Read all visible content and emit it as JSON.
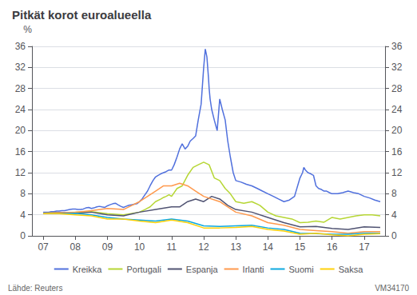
{
  "chart_data": {
    "type": "line",
    "title": "Pitkät korot euroalueella",
    "ylabel": "%",
    "annotations": [
      "Lähde: Reuters",
      "VM34170"
    ],
    "xlim": [
      2006.65,
      2017.65
    ],
    "xticks": [
      {
        "value": 2007,
        "label": "07"
      },
      {
        "value": 2008,
        "label": "08"
      },
      {
        "value": 2009,
        "label": "09"
      },
      {
        "value": 2010,
        "label": "10"
      },
      {
        "value": 2011,
        "label": "11"
      },
      {
        "value": 2012,
        "label": "12"
      },
      {
        "value": 2013,
        "label": "13"
      },
      {
        "value": 2014,
        "label": "14"
      },
      {
        "value": 2015,
        "label": "15"
      },
      {
        "value": 2016,
        "label": "16"
      },
      {
        "value": 2017,
        "label": "17"
      }
    ],
    "ylim": [
      0,
      36
    ],
    "yticks": [
      0,
      4,
      8,
      12,
      16,
      20,
      24,
      28,
      32,
      36
    ],
    "y2lim": [
      0,
      36
    ],
    "y2ticks": [
      0,
      4,
      8,
      12,
      16,
      20,
      24,
      28,
      32,
      36
    ],
    "grid": true,
    "legend": "bottom",
    "series": [
      {
        "name": "Kreikka",
        "x": [
          2007.0,
          2007.08,
          2007.17,
          2007.25,
          2007.33,
          2007.42,
          2007.5,
          2007.58,
          2007.67,
          2007.75,
          2007.83,
          2007.92,
          2008.0,
          2008.08,
          2008.17,
          2008.25,
          2008.33,
          2008.42,
          2008.5,
          2008.58,
          2008.67,
          2008.75,
          2008.83,
          2008.92,
          2009.0,
          2009.08,
          2009.17,
          2009.25,
          2009.33,
          2009.42,
          2009.5,
          2009.58,
          2009.67,
          2009.75,
          2009.83,
          2009.92,
          2010.0,
          2010.08,
          2010.17,
          2010.25,
          2010.33,
          2010.42,
          2010.5,
          2010.58,
          2010.67,
          2010.75,
          2010.83,
          2010.92,
          2011.0,
          2011.08,
          2011.17,
          2011.25,
          2011.33,
          2011.42,
          2011.5,
          2011.58,
          2011.67,
          2011.75,
          2011.83,
          2011.92,
          2012.0,
          2012.05,
          2012.1,
          2012.15,
          2012.17,
          2012.2,
          2012.25,
          2012.33,
          2012.42,
          2012.5,
          2012.58,
          2012.67,
          2012.75,
          2012.83,
          2012.92,
          2013.0,
          2013.17,
          2013.33,
          2013.5,
          2013.67,
          2013.83,
          2014.0,
          2014.17,
          2014.33,
          2014.5,
          2014.67,
          2014.83,
          2015.0,
          2015.08,
          2015.12,
          2015.17,
          2015.25,
          2015.33,
          2015.42,
          2015.5,
          2015.58,
          2015.67,
          2015.75,
          2015.83,
          2015.92,
          2016.0,
          2016.17,
          2016.33,
          2016.5,
          2016.67,
          2016.83,
          2017.0,
          2017.17,
          2017.33,
          2017.5
        ],
        "values": [
          4.5,
          4.5,
          4.5,
          4.6,
          4.6,
          4.7,
          4.7,
          4.8,
          4.8,
          4.9,
          5.0,
          5.1,
          5.1,
          5.0,
          5.0,
          5.1,
          5.3,
          5.4,
          5.2,
          5.3,
          5.5,
          5.6,
          5.5,
          5.4,
          5.7,
          5.9,
          6.1,
          6.2,
          5.9,
          5.6,
          5.4,
          5.6,
          5.8,
          5.9,
          6.0,
          6.1,
          6.5,
          7.0,
          7.8,
          8.5,
          9.5,
          10.5,
          11.2,
          11.5,
          11.8,
          12.0,
          12.2,
          12.5,
          12.5,
          13.5,
          15.0,
          16.5,
          17.5,
          16.5,
          17.0,
          18.0,
          18.5,
          19.0,
          22.0,
          25.0,
          32.0,
          35.5,
          34.0,
          30.0,
          28.0,
          26.0,
          24.0,
          22.0,
          20.0,
          26.0,
          24.0,
          22.0,
          18.0,
          15.0,
          12.0,
          10.5,
          10.2,
          9.8,
          9.5,
          9.0,
          8.5,
          8.0,
          7.5,
          7.0,
          6.5,
          6.8,
          7.5,
          11.0,
          12.0,
          13.0,
          12.5,
          12.0,
          11.8,
          11.5,
          9.5,
          9.0,
          8.8,
          8.5,
          8.5,
          8.2,
          8.0,
          8.0,
          8.2,
          8.5,
          8.2,
          8.0,
          7.5,
          7.2,
          6.8,
          6.5
        ]
      },
      {
        "name": "Portugali",
        "x": [
          2007.0,
          2007.5,
          2008.0,
          2008.5,
          2009.0,
          2009.5,
          2010.0,
          2010.17,
          2010.33,
          2010.5,
          2010.67,
          2010.75,
          2010.83,
          2010.92,
          2011.0,
          2011.17,
          2011.33,
          2011.5,
          2011.67,
          2011.83,
          2012.0,
          2012.17,
          2012.33,
          2012.5,
          2012.67,
          2012.83,
          2013.0,
          2013.25,
          2013.5,
          2013.75,
          2014.0,
          2014.25,
          2014.5,
          2014.75,
          2015.0,
          2015.25,
          2015.5,
          2015.75,
          2016.0,
          2016.25,
          2016.5,
          2016.75,
          2017.0,
          2017.25,
          2017.5
        ],
        "values": [
          4.3,
          4.4,
          4.5,
          4.6,
          4.2,
          4.0,
          4.5,
          5.0,
          5.5,
          6.5,
          7.0,
          7.3,
          7.5,
          7.8,
          7.5,
          9.0,
          9.5,
          11.5,
          13.0,
          13.5,
          14.0,
          13.5,
          11.0,
          10.5,
          9.0,
          8.0,
          6.5,
          6.2,
          6.5,
          5.8,
          4.5,
          3.8,
          3.5,
          3.2,
          2.5,
          2.6,
          2.8,
          2.6,
          3.5,
          3.2,
          3.5,
          3.8,
          4.0,
          4.0,
          3.8
        ]
      },
      {
        "name": "Espanja",
        "x": [
          2007.0,
          2007.5,
          2008.0,
          2008.5,
          2009.0,
          2009.5,
          2010.0,
          2010.5,
          2011.0,
          2011.25,
          2011.5,
          2011.75,
          2012.0,
          2012.25,
          2012.5,
          2012.75,
          2013.0,
          2013.5,
          2014.0,
          2014.5,
          2015.0,
          2015.5,
          2016.0,
          2016.5,
          2017.0,
          2017.5
        ],
        "values": [
          4.3,
          4.4,
          4.3,
          4.5,
          4.0,
          3.8,
          4.5,
          5.0,
          5.5,
          5.5,
          6.5,
          7.0,
          6.5,
          7.5,
          7.0,
          5.8,
          5.0,
          4.5,
          3.5,
          2.5,
          1.7,
          1.8,
          1.4,
          1.2,
          1.7,
          1.6
        ]
      },
      {
        "name": "Irlanti",
        "x": [
          2007.0,
          2007.5,
          2008.0,
          2008.5,
          2009.0,
          2009.5,
          2010.0,
          2010.25,
          2010.5,
          2010.75,
          2011.0,
          2011.25,
          2011.5,
          2011.75,
          2012.0,
          2012.5,
          2013.0,
          2013.5,
          2014.0,
          2014.5,
          2015.0,
          2015.5,
          2016.0,
          2016.5,
          2017.0,
          2017.5
        ],
        "values": [
          4.3,
          4.4,
          4.5,
          4.8,
          5.2,
          5.0,
          6.5,
          7.5,
          8.5,
          9.5,
          9.5,
          10.0,
          9.5,
          8.5,
          7.5,
          6.5,
          4.5,
          3.8,
          2.5,
          2.0,
          1.2,
          1.0,
          0.8,
          0.5,
          0.8,
          0.8
        ]
      },
      {
        "name": "Suomi",
        "x": [
          2007.0,
          2007.5,
          2008.0,
          2008.5,
          2009.0,
          2009.5,
          2010.0,
          2010.5,
          2011.0,
          2011.5,
          2012.0,
          2012.5,
          2013.0,
          2013.5,
          2014.0,
          2014.5,
          2015.0,
          2015.5,
          2016.0,
          2016.5,
          2017.0,
          2017.5
        ],
        "values": [
          4.2,
          4.2,
          4.3,
          4.0,
          3.5,
          3.2,
          3.0,
          2.8,
          3.2,
          2.8,
          1.9,
          1.8,
          1.9,
          2.0,
          1.5,
          1.2,
          0.5,
          0.4,
          0.3,
          0.3,
          0.5,
          0.5
        ]
      },
      {
        "name": "Saksa",
        "x": [
          2007.0,
          2007.5,
          2008.0,
          2008.5,
          2009.0,
          2009.5,
          2010.0,
          2010.5,
          2011.0,
          2011.5,
          2012.0,
          2012.5,
          2013.0,
          2013.5,
          2014.0,
          2014.5,
          2015.0,
          2015.5,
          2016.0,
          2016.5,
          2017.0,
          2017.5
        ],
        "values": [
          4.2,
          4.2,
          4.0,
          3.8,
          3.2,
          3.2,
          2.8,
          2.5,
          3.0,
          2.5,
          1.5,
          1.5,
          1.6,
          1.8,
          1.2,
          0.9,
          0.3,
          0.5,
          0.2,
          0.0,
          0.3,
          0.4
        ]
      }
    ]
  }
}
